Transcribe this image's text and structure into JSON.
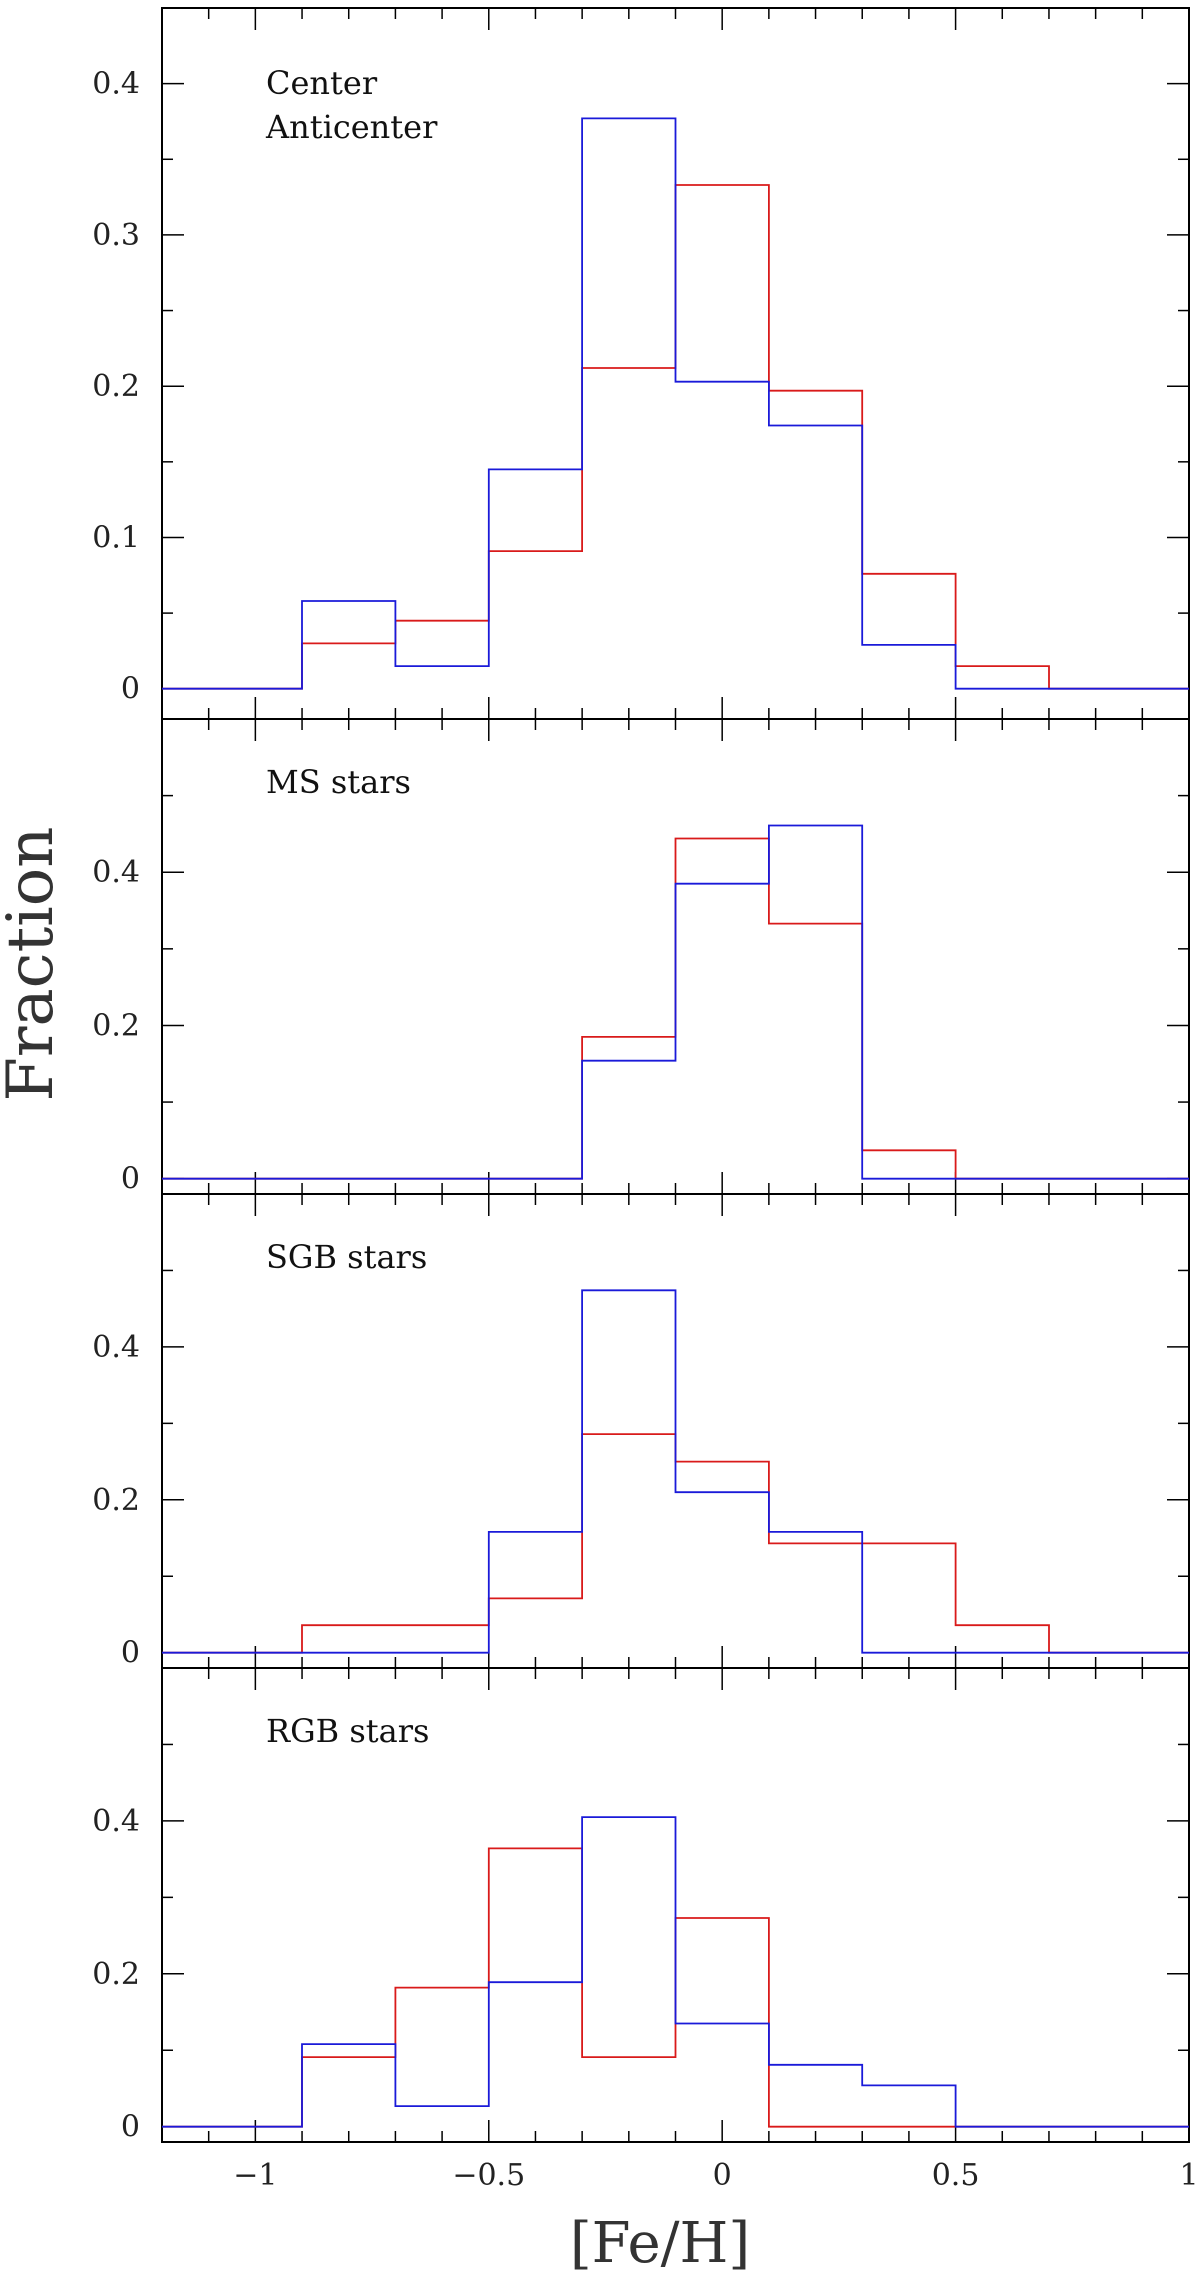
{
  "chart_data": {
    "type": "histogram",
    "xlabel": "[Fe/H]",
    "ylabel": "Fraction",
    "xlim": [
      -1.2,
      1.0
    ],
    "xticks": [
      -1,
      -0.5,
      0,
      0.5,
      1
    ],
    "xtick_labels": [
      "−1",
      "−0.5",
      "0",
      "0.5",
      "1"
    ],
    "bin_edges": [
      -1.2,
      -0.9,
      -0.7,
      -0.5,
      -0.3,
      -0.1,
      0.1,
      0.3,
      0.5,
      0.7,
      1.0
    ],
    "legend": [
      {
        "name": "Center",
        "color": "#1a1ad9"
      },
      {
        "name": "Anticenter",
        "color": "#d91a1a"
      }
    ],
    "panels": [
      {
        "label": "",
        "ylim": [
          -0.02,
          0.45
        ],
        "yticks": [
          0,
          0.1,
          0.2,
          0.3,
          0.4
        ],
        "ytick_labels": [
          "0",
          "0.1",
          "0.2",
          "0.3",
          "0.4"
        ],
        "series": [
          {
            "name": "Center",
            "values": [
              0,
              0.058,
              0.015,
              0.145,
              0.377,
              0.203,
              0.174,
              0.029,
              0,
              0
            ]
          },
          {
            "name": "Anticenter",
            "values": [
              0,
              0.03,
              0.045,
              0.091,
              0.212,
              0.333,
              0.197,
              0.076,
              0.015,
              0
            ]
          }
        ]
      },
      {
        "label": "MS stars",
        "ylim": [
          -0.02,
          0.6
        ],
        "yticks": [
          0,
          0.2,
          0.4
        ],
        "ytick_labels": [
          "0",
          "0.2",
          "0.4"
        ],
        "series": [
          {
            "name": "Center",
            "values": [
              0,
              0,
              0,
              0,
              0.154,
              0.385,
              0.461,
              0,
              0,
              0
            ]
          },
          {
            "name": "Anticenter",
            "values": [
              0,
              0,
              0,
              0,
              0.185,
              0.444,
              0.333,
              0.037,
              0,
              0
            ]
          }
        ]
      },
      {
        "label": "SGB stars",
        "ylim": [
          -0.02,
          0.6
        ],
        "yticks": [
          0,
          0.2,
          0.4
        ],
        "ytick_labels": [
          "0",
          "0.2",
          "0.4"
        ],
        "series": [
          {
            "name": "Center",
            "values": [
              0,
              0,
              0,
              0.158,
              0.474,
              0.21,
              0.158,
              0,
              0,
              0
            ]
          },
          {
            "name": "Anticenter",
            "values": [
              0,
              0.036,
              0.036,
              0.071,
              0.286,
              0.25,
              0.143,
              0.143,
              0.036,
              0
            ]
          }
        ]
      },
      {
        "label": "RGB stars",
        "ylim": [
          -0.02,
          0.6
        ],
        "yticks": [
          0,
          0.2,
          0.4
        ],
        "ytick_labels": [
          "0",
          "0.2",
          "0.4"
        ],
        "series": [
          {
            "name": "Center",
            "values": [
              0,
              0.108,
              0.027,
              0.189,
              0.405,
              0.135,
              0.081,
              0.054,
              0,
              0
            ]
          },
          {
            "name": "Anticenter",
            "values": [
              0,
              0.091,
              0.182,
              0.364,
              0.091,
              0.273,
              0,
              0,
              0,
              0
            ]
          }
        ]
      }
    ]
  }
}
